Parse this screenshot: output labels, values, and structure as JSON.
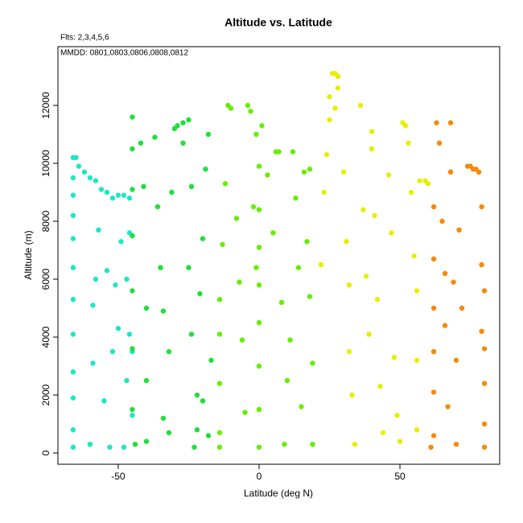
{
  "chart_data": {
    "type": "scatter",
    "title": "Altitude vs. Latitude",
    "annotations": [
      "Flts: 2,3,4,5,6",
      "MMDD: 0801,0803,0806,0808,0812"
    ],
    "xlabel": "Latitude (deg N)",
    "ylabel": "Altitude (m)",
    "xlim": [
      -71.4,
      85.4
    ],
    "ylim": [
      -389,
      14028
    ],
    "xticks": [
      -50,
      0,
      50
    ],
    "yticks": [
      0,
      2000,
      4000,
      6000,
      8000,
      10000,
      12000
    ],
    "grid": false,
    "series": [
      {
        "color": "#1ee6c4",
        "x": [
          -66,
          -66,
          -66,
          -66,
          -66,
          -66,
          -66,
          -66,
          -66,
          -66,
          -66,
          -66,
          -65,
          -64,
          -62,
          -60,
          -58,
          -56,
          -54,
          -52,
          -50,
          -48,
          -46,
          -60,
          -59,
          -59,
          -58,
          -57,
          -55,
          -54,
          -53,
          -52,
          -51,
          -50,
          -49,
          -48,
          -47,
          -47,
          -46,
          -45,
          -45,
          -46
        ],
        "values": [
          200,
          800,
          1900,
          2800,
          4100,
          5300,
          6400,
          7400,
          8200,
          8900,
          9500,
          10200,
          10200,
          9900,
          9700,
          9500,
          9400,
          9100,
          9000,
          8800,
          8900,
          8900,
          8800,
          300,
          3100,
          5100,
          6000,
          7700,
          1800,
          6300,
          200,
          3500,
          5800,
          4300,
          7300,
          200,
          2500,
          6000,
          4100,
          1300,
          3500,
          7600
        ]
      },
      {
        "color": "#1ee03c",
        "x": [
          -45,
          -45,
          -45,
          -45,
          -45,
          -45,
          -45,
          -44,
          -42,
          -41,
          -40,
          -40,
          -40,
          -37,
          -36,
          -35,
          -34,
          -34,
          -32,
          -32,
          -31,
          -30,
          -29,
          -27,
          -25,
          -24,
          -25,
          -24,
          -23,
          -22,
          -21,
          -20,
          -19,
          -18,
          -17,
          -18,
          -20,
          -22,
          -27
        ],
        "values": [
          11600,
          10500,
          9100,
          7500,
          5600,
          3600,
          1500,
          300,
          10700,
          9200,
          5000,
          2500,
          400,
          10900,
          8500,
          6400,
          4900,
          1200,
          3500,
          700,
          9000,
          11200,
          11300,
          11400,
          11500,
          9200,
          6400,
          4100,
          200,
          2000,
          5500,
          7400,
          9800,
          11000,
          3200,
          600,
          1800,
          800,
          10700
        ]
      },
      {
        "color": "#66ee00",
        "x": [
          -14,
          -14,
          -14,
          -14,
          -14,
          -13,
          -12,
          -11,
          -10,
          -8,
          -7,
          -6,
          -5,
          -4,
          -3,
          -2,
          -1,
          -1,
          0,
          0,
          0,
          0,
          0,
          0,
          0,
          0,
          1,
          3,
          5,
          6,
          7,
          8,
          9,
          10,
          11,
          12,
          13,
          14,
          15,
          16,
          17,
          18,
          19,
          19,
          18
        ],
        "values": [
          200,
          700,
          2400,
          4100,
          5300,
          7200,
          9300,
          12000,
          11900,
          8100,
          5900,
          3900,
          1400,
          12000,
          11800,
          8500,
          6400,
          11000,
          200,
          1500,
          3000,
          4500,
          5800,
          7100,
          8400,
          9900,
          11300,
          9600,
          7600,
          10400,
          10400,
          5200,
          300,
          2500,
          3900,
          10400,
          8800,
          6400,
          1600,
          9700,
          7300,
          5400,
          3100,
          300,
          9800
        ]
      },
      {
        "color": "#e8ee00",
        "x": [
          22,
          23,
          24,
          25,
          26,
          27,
          28,
          28,
          27,
          25,
          30,
          31,
          32,
          32,
          33,
          34,
          36,
          37,
          38,
          39,
          40,
          40,
          41,
          42,
          43,
          44,
          46,
          47,
          48,
          49,
          50,
          51,
          52,
          53,
          54,
          55,
          56,
          56,
          56,
          57,
          59,
          60
        ],
        "values": [
          6500,
          9000,
          10300,
          12300,
          13100,
          13100,
          13000,
          12600,
          11900,
          11500,
          9700,
          7300,
          5800,
          3500,
          2000,
          300,
          12000,
          8400,
          6100,
          4100,
          11100,
          10500,
          8200,
          5300,
          2300,
          700,
          9600,
          7600,
          3300,
          1300,
          400,
          11400,
          11300,
          10700,
          9000,
          6800,
          5600,
          3200,
          800,
          9400,
          9400,
          9300
        ]
      },
      {
        "color": "#f58a0a",
        "x": [
          61,
          62,
          62,
          62,
          62,
          62,
          62,
          63,
          64,
          65,
          66,
          66,
          67,
          68,
          68,
          69,
          70,
          70,
          71,
          72,
          74,
          75,
          76,
          77,
          78,
          79,
          79,
          79,
          80,
          80,
          80,
          80,
          80
        ],
        "values": [
          200,
          600,
          2100,
          3500,
          5000,
          6700,
          8500,
          11400,
          10700,
          8000,
          6200,
          4400,
          1600,
          11400,
          9700,
          5900,
          3200,
          300,
          7700,
          5000,
          9900,
          9900,
          9800,
          9800,
          9700,
          8500,
          6500,
          4200,
          2400,
          1000,
          200,
          5600,
          3600
        ]
      }
    ]
  }
}
